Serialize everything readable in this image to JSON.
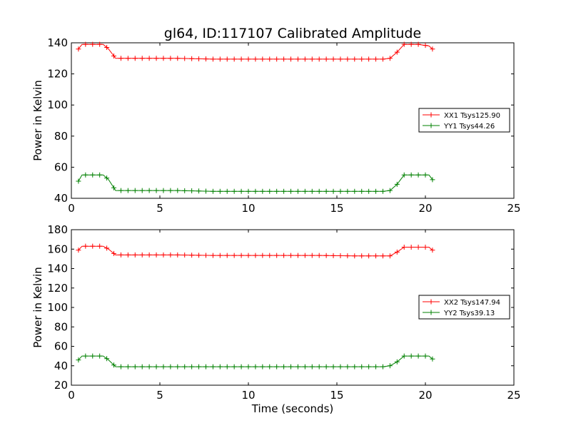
{
  "chart_data": [
    {
      "type": "line",
      "title": "gl64, ID:117107 Calibrated Amplitude",
      "xlabel": "",
      "ylabel": "Power in Kelvin",
      "xlim": [
        0,
        25
      ],
      "ylim": [
        40,
        140
      ],
      "xticks": [
        "0",
        "5",
        "10",
        "15",
        "20",
        "25"
      ],
      "yticks": [
        "40",
        "60",
        "80",
        "100",
        "120",
        "140"
      ],
      "legend_position": "right",
      "series": [
        {
          "name": "XX1 Tsys125.90",
          "color": "#ff0000",
          "x": [
            0.4,
            0.6,
            1.2,
            1.8,
            2.1,
            2.5,
            4.0,
            6.0,
            8.0,
            10.0,
            12.0,
            14.0,
            16.0,
            17.6,
            18.0,
            18.4,
            18.8,
            19.6,
            20.2,
            20.4
          ],
          "y": [
            136,
            139,
            139,
            139,
            136,
            130,
            130,
            130,
            129.5,
            129.5,
            129.5,
            129.5,
            129.5,
            129.5,
            130,
            134,
            139,
            139,
            138,
            136
          ]
        },
        {
          "name": "YY1 Tsys44.26",
          "color": "#008000",
          "x": [
            0.4,
            0.6,
            1.2,
            1.8,
            2.1,
            2.5,
            4.0,
            6.0,
            8.0,
            10.0,
            12.0,
            14.0,
            16.0,
            17.6,
            18.0,
            18.4,
            18.8,
            19.6,
            20.2,
            20.4
          ],
          "y": [
            51,
            55,
            55,
            55,
            52,
            45,
            45,
            45,
            44.5,
            44.5,
            44.5,
            44.5,
            44.5,
            44.5,
            45,
            49,
            55,
            55,
            55,
            52
          ]
        }
      ]
    },
    {
      "type": "line",
      "title": "",
      "xlabel": "Time (seconds)",
      "ylabel": "Power in Kelvin",
      "xlim": [
        0,
        25
      ],
      "ylim": [
        20,
        180
      ],
      "xticks": [
        "0",
        "5",
        "10",
        "15",
        "20",
        "25"
      ],
      "yticks": [
        "20",
        "40",
        "60",
        "80",
        "100",
        "120",
        "140",
        "160",
        "180"
      ],
      "legend_position": "right",
      "series": [
        {
          "name": "XX2 Tsys147.94",
          "color": "#ff0000",
          "x": [
            0.4,
            0.6,
            1.2,
            1.8,
            2.1,
            2.5,
            4.0,
            6.0,
            8.0,
            10.0,
            12.0,
            14.0,
            16.0,
            17.6,
            18.0,
            18.4,
            18.8,
            19.6,
            20.2,
            20.4
          ],
          "y": [
            159,
            163,
            163,
            163,
            160,
            154,
            154,
            154,
            153.5,
            153.5,
            153.5,
            153.5,
            153,
            153,
            153,
            157,
            162,
            162,
            162,
            159
          ]
        },
        {
          "name": "YY2 Tsys39.13",
          "color": "#008000",
          "x": [
            0.4,
            0.6,
            1.2,
            1.8,
            2.1,
            2.5,
            4.0,
            6.0,
            8.0,
            10.0,
            12.0,
            14.0,
            16.0,
            17.6,
            18.0,
            18.4,
            18.8,
            19.6,
            20.2,
            20.4
          ],
          "y": [
            46,
            50,
            50,
            50,
            46,
            39,
            39,
            39,
            39,
            39,
            39,
            39,
            39,
            39,
            40,
            44,
            50,
            50,
            50,
            47
          ]
        }
      ]
    }
  ]
}
